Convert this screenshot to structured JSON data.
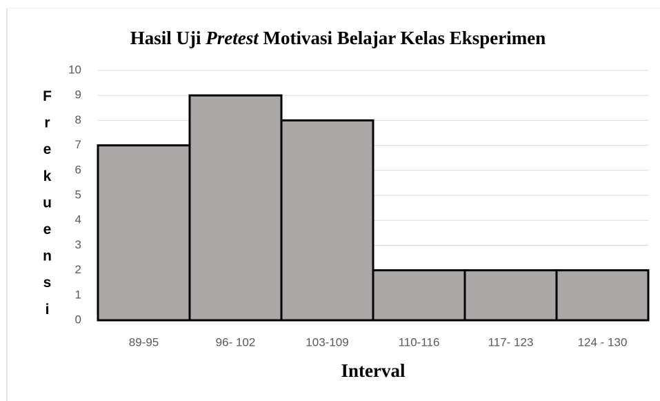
{
  "chart_data": {
    "type": "bar",
    "title": [
      "Hasil Uji ",
      "Pretest",
      " Motivasi Belajar Kelas Eksperimen"
    ],
    "x_label": "Interval",
    "y_label": "Frekuensi",
    "categories": [
      "89-95",
      "96- 102",
      "103-109",
      "110-116",
      "117- 123",
      "124 - 130"
    ],
    "values": [
      7,
      9,
      8,
      2,
      2,
      2
    ],
    "color": "#aba7a6",
    "ylim": [
      0,
      10
    ],
    "yticks": [
      0,
      1,
      2,
      3,
      4,
      5,
      6,
      7,
      8,
      9,
      10
    ],
    "grid": true
  }
}
